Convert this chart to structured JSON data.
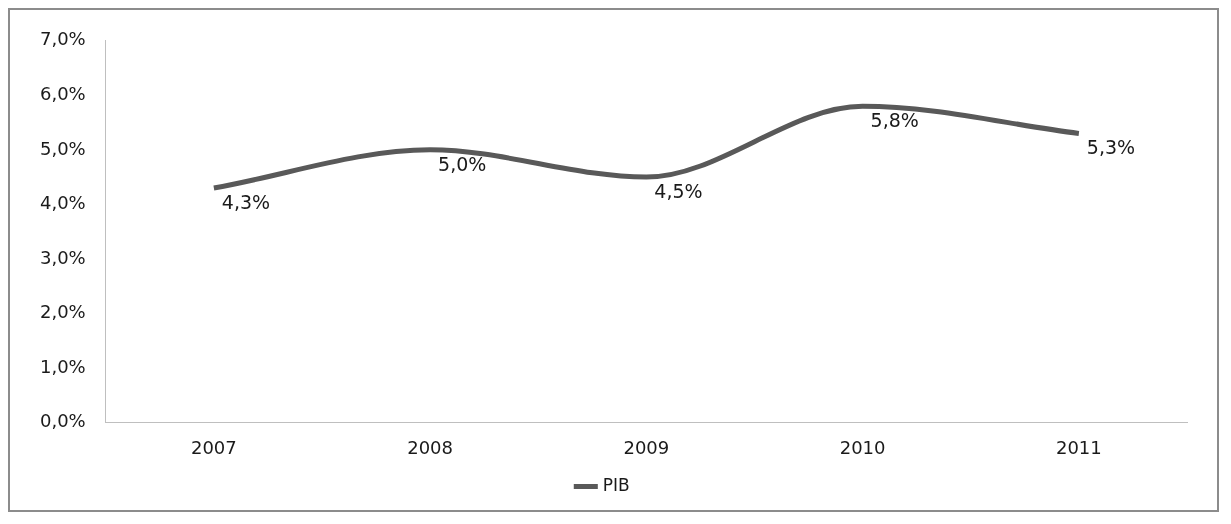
{
  "chart_data": {
    "type": "line",
    "categories": [
      "2007",
      "2008",
      "2009",
      "2010",
      "2011"
    ],
    "series": [
      {
        "name": "PIB",
        "color": "#595959",
        "values": [
          4.3,
          5.0,
          4.5,
          5.8,
          5.3
        ],
        "value_labels": [
          "4,3%",
          "5,0%",
          "4,5%",
          "5,8%",
          "5,3%"
        ]
      }
    ],
    "ylim": [
      0,
      7
    ],
    "yticks": [
      {
        "value": 0,
        "label": "0,0%"
      },
      {
        "value": 1,
        "label": "1,0%"
      },
      {
        "value": 2,
        "label": "2,0%"
      },
      {
        "value": 3,
        "label": "3,0%"
      },
      {
        "value": 4,
        "label": "4,0%"
      },
      {
        "value": 5,
        "label": "5,0%"
      },
      {
        "value": 6,
        "label": "6,0%"
      },
      {
        "value": 7,
        "label": "7,0%"
      }
    ],
    "legend": "bottom"
  }
}
